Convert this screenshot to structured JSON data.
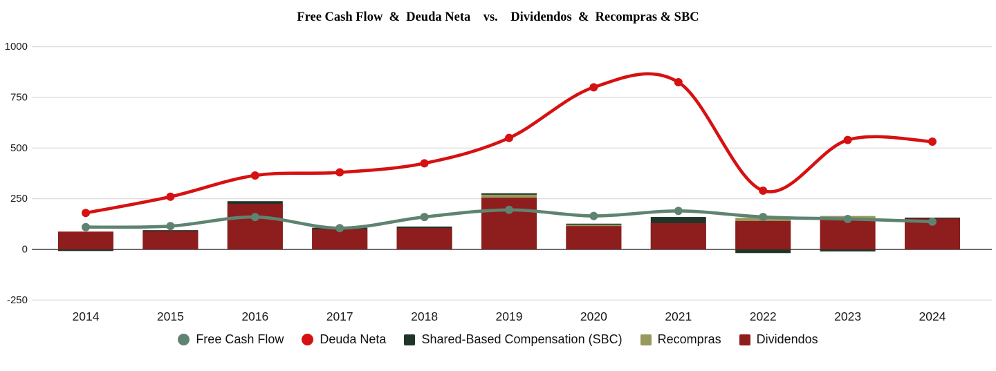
{
  "title": "Free Cash Flow  &  Deuda Neta    vs.    Dividendos  &  Recompras & SBC",
  "axis": {
    "grid_color": "#d8d8d8",
    "zero_line_color": "#3c3c3c",
    "tick_label_color": "#1a1a1a"
  },
  "chart_data": {
    "type": "combo (bar + smoothed line)",
    "title": "Free Cash Flow  &  Deuda Neta    vs.    Dividendos  &  Recompras & SBC",
    "x": [
      "2014",
      "2015",
      "2016",
      "2017",
      "2018",
      "2019",
      "2020",
      "2021",
      "2022",
      "2023",
      "2024"
    ],
    "xlabel": "",
    "ylabel": "",
    "ylim": [
      -250,
      1000
    ],
    "yticks": [
      1000,
      750,
      500,
      250,
      0,
      -250
    ],
    "grid": true,
    "legend_position": "bottom",
    "series": [
      {
        "name": "Free Cash Flow",
        "kind": "line",
        "color": "#5e8471",
        "values": [
          110,
          115,
          160,
          105,
          160,
          195,
          165,
          190,
          160,
          150,
          137
        ]
      },
      {
        "name": "Deuda Neta",
        "kind": "line",
        "color": "#d61111",
        "values": [
          180,
          260,
          365,
          380,
          425,
          550,
          800,
          825,
          290,
          540,
          532
        ]
      },
      {
        "name": "Shared-Based Compensation (SBC)",
        "kind": "bar",
        "color": "#203529",
        "values": [
          -8,
          95,
          238,
          107,
          113,
          277,
          127,
          160,
          -18,
          -10,
          157
        ]
      },
      {
        "name": "Recompras",
        "kind": "bar",
        "color": "#97995d",
        "values": [
          null,
          null,
          null,
          null,
          null,
          270,
          122,
          null,
          156,
          165,
          null
        ]
      },
      {
        "name": "Dividendos",
        "kind": "bar",
        "color": "#8e1d1d",
        "values": [
          88,
          90,
          225,
          100,
          105,
          255,
          115,
          130,
          140,
          148,
          152
        ]
      }
    ]
  }
}
